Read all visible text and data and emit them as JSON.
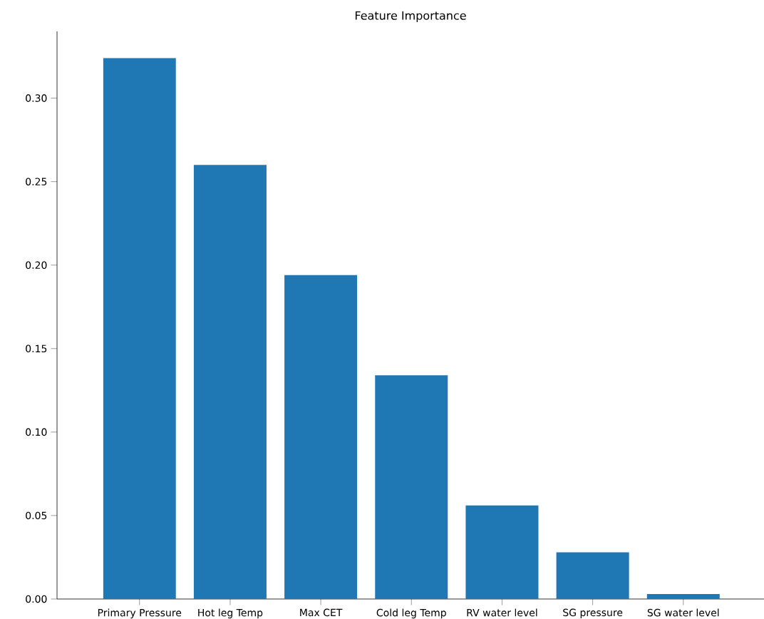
{
  "chart_data": {
    "type": "bar",
    "title": "Feature Importance",
    "categories": [
      "Primary Pressure",
      "Hot leg Temp",
      "Max CET",
      "Cold leg Temp",
      "RV water level",
      "SG pressure",
      "SG water level"
    ],
    "values": [
      0.324,
      0.26,
      0.194,
      0.134,
      0.056,
      0.028,
      0.003
    ],
    "color": "#1f77b4",
    "ylim": [
      0,
      0.34
    ],
    "yticks": [
      {
        "value": 0,
        "label": "0.00"
      },
      {
        "value": 0.05,
        "label": "0.05"
      },
      {
        "value": 0.1,
        "label": "0.10"
      },
      {
        "value": 0.15,
        "label": "0.15"
      },
      {
        "value": 0.2,
        "label": "0.20"
      },
      {
        "value": 0.25,
        "label": "0.25"
      },
      {
        "value": 0.3,
        "label": "0.30"
      }
    ]
  }
}
